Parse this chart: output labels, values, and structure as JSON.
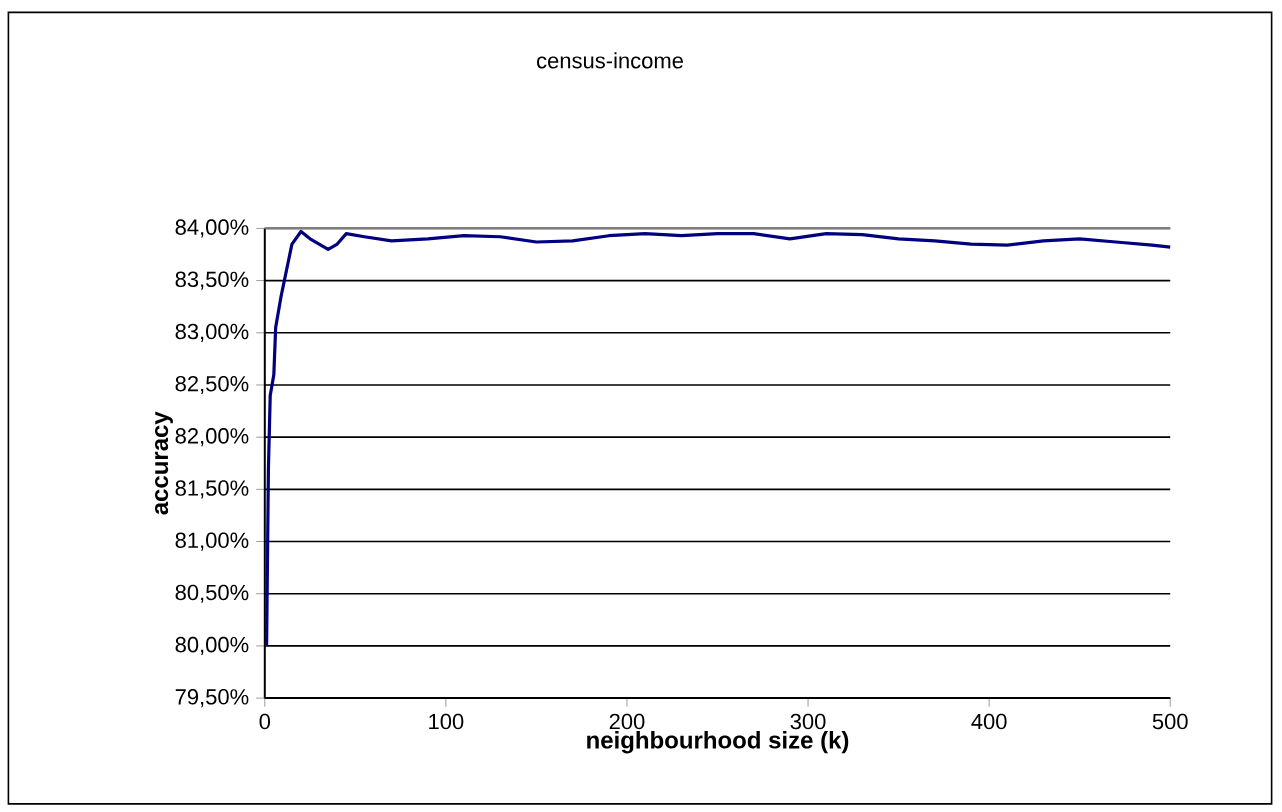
{
  "chart_data": {
    "type": "line",
    "title": "census-income",
    "xlabel": "neighbourhood size (k)",
    "ylabel": "accuracy",
    "series": [
      {
        "color": "#000080",
        "x": [
          1,
          2,
          3,
          5,
          6,
          9,
          12,
          15,
          20,
          25,
          30,
          35,
          40,
          45,
          55,
          70,
          90,
          110,
          130,
          150,
          170,
          190,
          210,
          230,
          250,
          270,
          290,
          310,
          330,
          350,
          370,
          390,
          410,
          430,
          450,
          470,
          490,
          500
        ],
        "values": [
          80.0,
          81.7,
          82.4,
          82.6,
          83.05,
          83.35,
          83.6,
          83.85,
          83.97,
          83.9,
          83.85,
          83.8,
          83.85,
          83.95,
          83.92,
          83.88,
          83.9,
          83.93,
          83.92,
          83.87,
          83.88,
          83.93,
          83.95,
          83.93,
          83.95,
          83.95,
          83.9,
          83.95,
          83.94,
          83.9,
          83.88,
          83.85,
          83.84,
          83.88,
          83.9,
          83.87,
          83.84,
          83.82
        ]
      }
    ],
    "xlim": [
      0,
      500
    ],
    "xticks": [
      0,
      100,
      200,
      300,
      400,
      500
    ],
    "ylim": [
      79.5,
      84
    ],
    "yticks": [
      {
        "value": 79.5,
        "label": "79,50%"
      },
      {
        "value": 80,
        "label": "80,00%"
      },
      {
        "value": 80.5,
        "label": "80,50%"
      },
      {
        "value": 81,
        "label": "81,00%"
      },
      {
        "value": 81.5,
        "label": "81,50%"
      },
      {
        "value": 82,
        "label": "82,00%"
      },
      {
        "value": 82.5,
        "label": "82,50%"
      },
      {
        "value": 83,
        "label": "83,00%"
      },
      {
        "value": 83.5,
        "label": "83,50%"
      },
      {
        "value": 84,
        "label": "84,00%"
      }
    ],
    "grid": "y",
    "marker": "none",
    "line_style": "solid"
  }
}
